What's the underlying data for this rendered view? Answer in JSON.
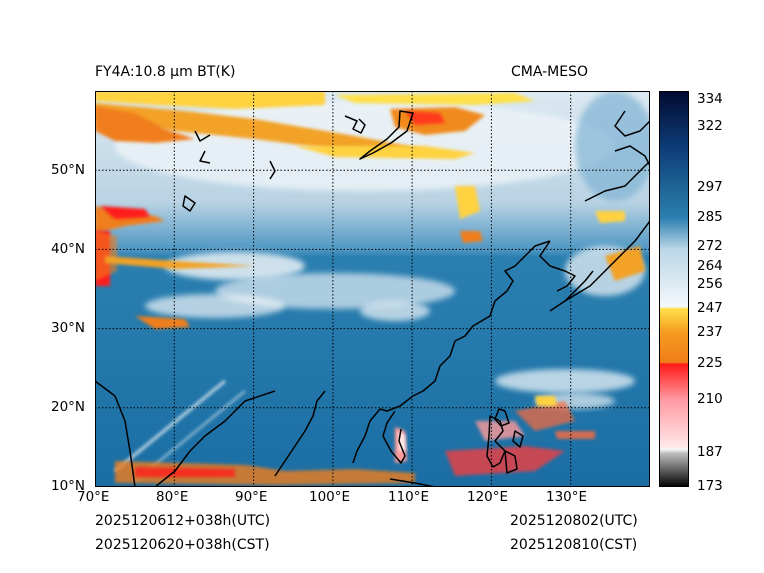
{
  "header": {
    "left_title": "FY4A:10.8 µm BT(K)",
    "right_title": "CMA-MESO"
  },
  "footer": {
    "init_utc": "2025120612+038h(UTC)",
    "init_cst": "2025120620+038h(CST)",
    "valid_utc": "2025120802(UTC)",
    "valid_cst": "2025120810(CST)"
  },
  "map": {
    "lon_range": [
      70,
      140
    ],
    "lat_range": [
      10,
      60
    ],
    "lon_ticks": [
      "70°E",
      "80°E",
      "90°E",
      "100°E",
      "110°E",
      "120°E",
      "130°E"
    ],
    "lat_ticks": [
      "10°N",
      "20°N",
      "30°N",
      "40°N",
      "50°N"
    ],
    "gridlines": "dotted"
  },
  "colorbar": {
    "range": [
      173,
      338
    ],
    "ticks": [
      173,
      187,
      210,
      225,
      237,
      247,
      256,
      264,
      272,
      285,
      297,
      322,
      334
    ],
    "colors": {
      "cold_black": "#000000",
      "gray": "#bdbdbd",
      "red": "#ff1a1a",
      "orange": "#f07e1a",
      "yellow": "#ffe04a",
      "white": "#f4f8fb",
      "light_blue": "#bcd7e8",
      "mid_blue": "#2b7fb0",
      "steel_blue": "#1f6796",
      "dark_blue": "#0b2f6b",
      "navy": "#020a30"
    }
  }
}
